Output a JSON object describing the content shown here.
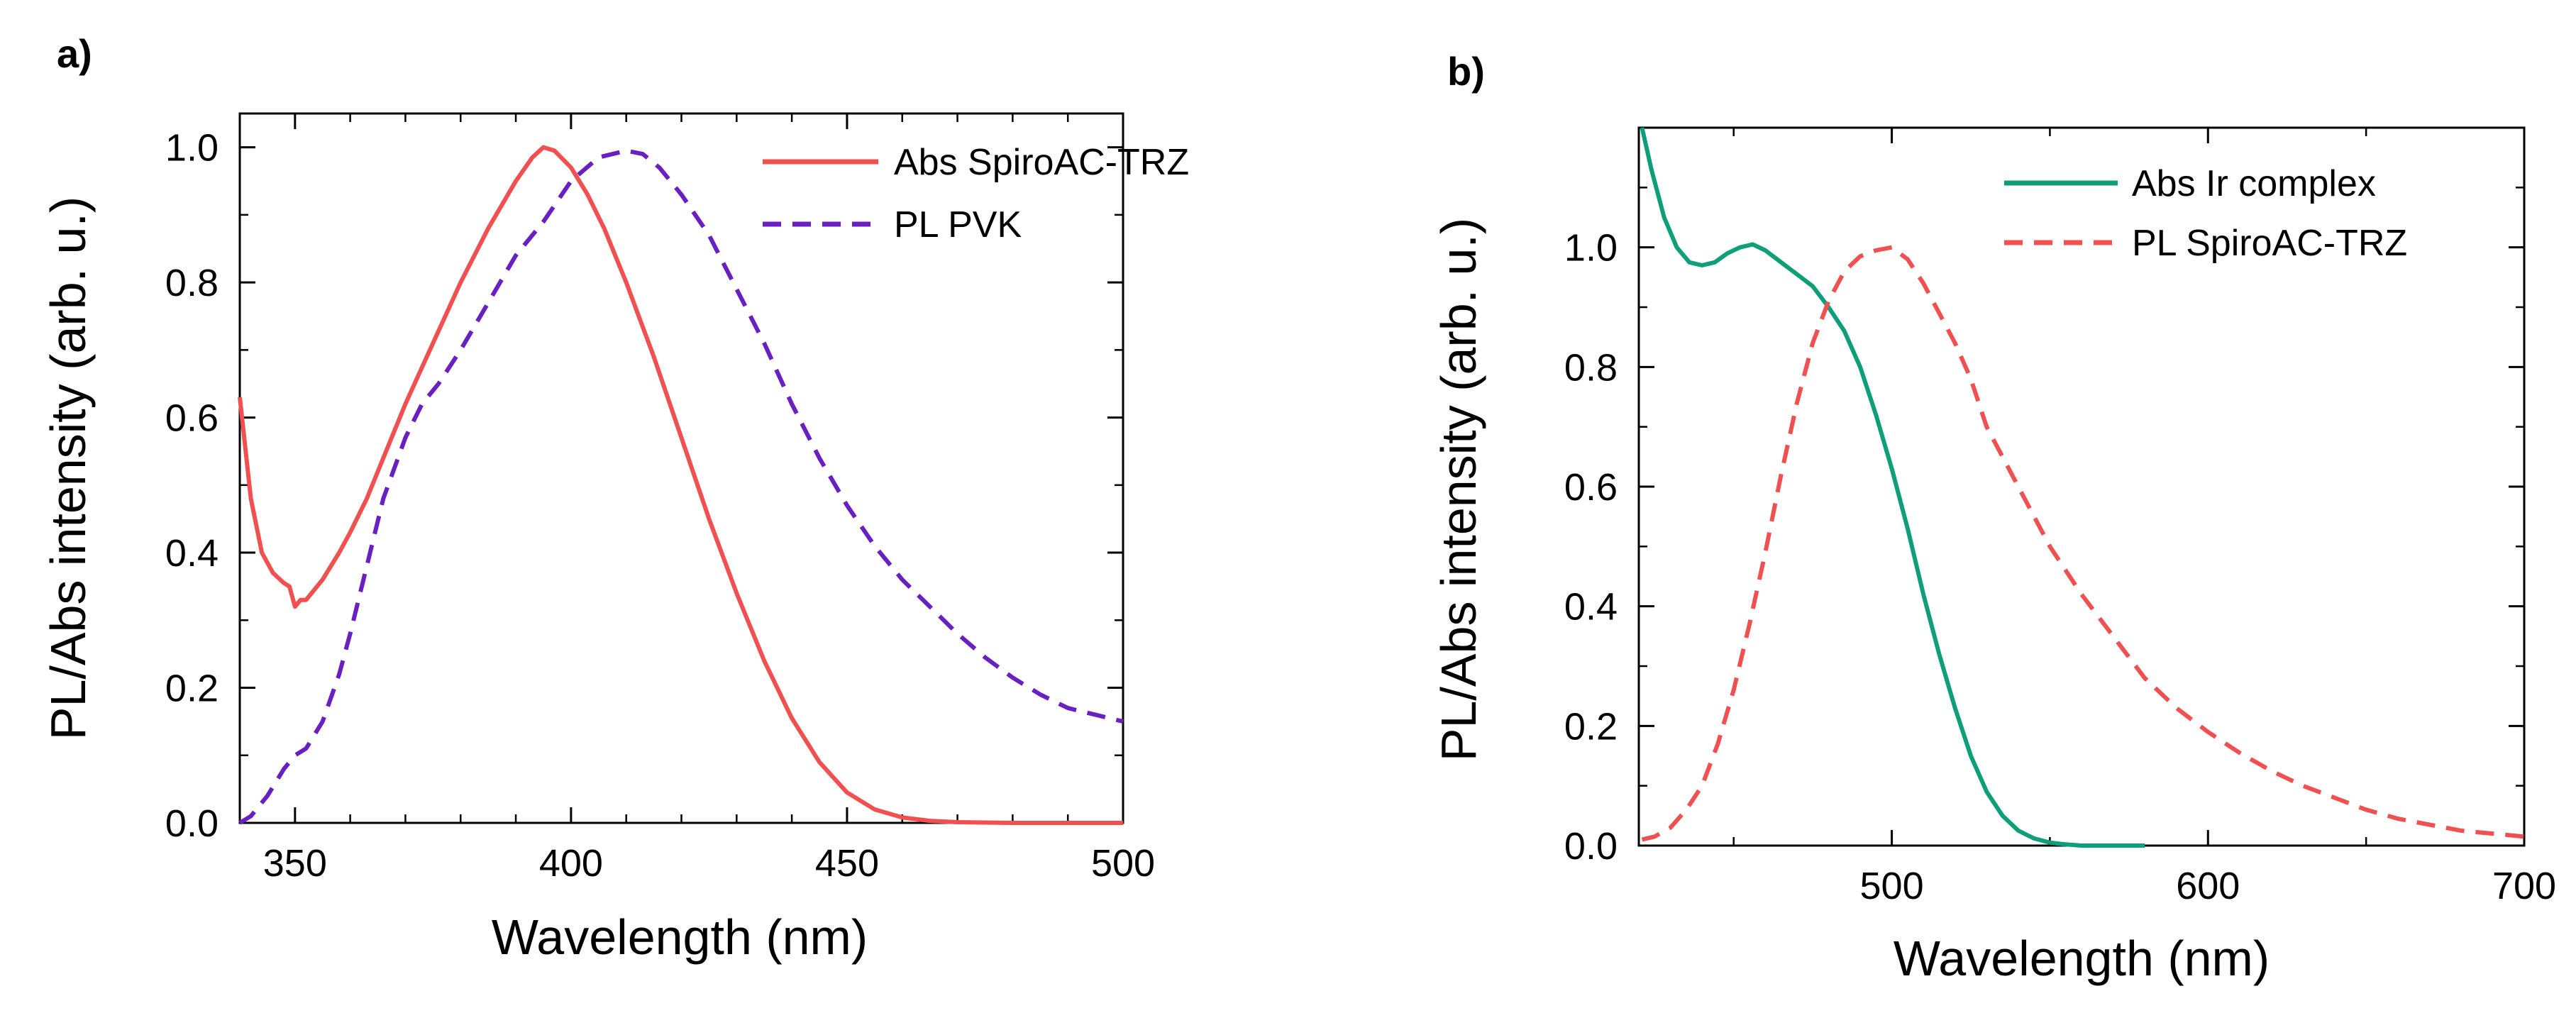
{
  "chart_data": [
    {
      "panel": "a)",
      "type": "line",
      "title": "",
      "xlabel": "Wavelength (nm)",
      "ylabel": "PL/Abs intensity (arb. u.)",
      "xlim": [
        340,
        500
      ],
      "ylim": [
        0,
        1.05
      ],
      "xticks": [
        350,
        400,
        450,
        500
      ],
      "yticks": [
        0.0,
        0.2,
        0.4,
        0.6,
        0.8,
        1.0
      ],
      "xtick_labels": [
        "350",
        "400",
        "450",
        "500"
      ],
      "ytick_labels": [
        "0.0",
        "0.2",
        "0.4",
        "0.6",
        "0.8",
        "1.0"
      ],
      "legend_position": "top-right",
      "series": [
        {
          "name": "Abs SpiroAC-TRZ",
          "color": "#f05050",
          "style": "solid",
          "x": [
            340,
            342,
            344,
            346,
            348,
            349,
            350,
            351,
            352,
            355,
            358,
            360,
            363,
            366,
            370,
            375,
            380,
            385,
            390,
            393,
            395,
            397,
            400,
            403,
            406,
            410,
            415,
            420,
            425,
            430,
            435,
            440,
            445,
            450,
            455,
            460,
            465,
            470,
            480,
            490,
            500
          ],
          "y": [
            0.63,
            0.48,
            0.4,
            0.37,
            0.355,
            0.35,
            0.32,
            0.33,
            0.33,
            0.36,
            0.4,
            0.43,
            0.48,
            0.54,
            0.62,
            0.71,
            0.8,
            0.88,
            0.95,
            0.985,
            1.0,
            0.995,
            0.97,
            0.93,
            0.88,
            0.8,
            0.69,
            0.57,
            0.45,
            0.34,
            0.24,
            0.155,
            0.09,
            0.045,
            0.02,
            0.008,
            0.003,
            0.001,
            0.0,
            0.0,
            0.0
          ]
        },
        {
          "name": "PL PVK",
          "color": "#6a1fc0",
          "style": "dashed",
          "x": [
            340,
            342,
            345,
            348,
            350,
            352,
            355,
            358,
            360,
            363,
            366,
            370,
            373,
            376,
            380,
            385,
            390,
            395,
            400,
            405,
            410,
            413,
            416,
            420,
            425,
            430,
            435,
            440,
            445,
            450,
            455,
            460,
            465,
            470,
            475,
            480,
            485,
            490,
            495,
            500
          ],
          "y": [
            0.0,
            0.01,
            0.04,
            0.08,
            0.1,
            0.11,
            0.15,
            0.22,
            0.28,
            0.38,
            0.48,
            0.57,
            0.62,
            0.65,
            0.7,
            0.77,
            0.84,
            0.89,
            0.95,
            0.985,
            0.995,
            0.99,
            0.97,
            0.93,
            0.87,
            0.79,
            0.71,
            0.62,
            0.54,
            0.47,
            0.41,
            0.36,
            0.32,
            0.28,
            0.245,
            0.215,
            0.19,
            0.17,
            0.16,
            0.15
          ]
        }
      ]
    },
    {
      "panel": "b)",
      "type": "line",
      "title": "",
      "xlabel": "Wavelength (nm)",
      "ylabel": "PL/Abs intensity (arb. u.)",
      "xlim": [
        420,
        700
      ],
      "ylim": [
        0,
        1.2
      ],
      "xticks": [
        500,
        600,
        700
      ],
      "yticks": [
        0.0,
        0.2,
        0.4,
        0.6,
        0.8,
        1.0
      ],
      "xtick_labels": [
        "500",
        "600",
        "700"
      ],
      "ytick_labels": [
        "0.0",
        "0.2",
        "0.4",
        "0.6",
        "0.8",
        "1.0"
      ],
      "legend_position": "top-right",
      "series": [
        {
          "name": "Abs Ir complex",
          "color": "#0f9e7a",
          "style": "solid",
          "x": [
            421,
            424,
            428,
            432,
            436,
            440,
            444,
            448,
            452,
            456,
            460,
            465,
            470,
            475,
            480,
            485,
            490,
            495,
            500,
            505,
            510,
            515,
            520,
            525,
            530,
            535,
            540,
            545,
            550,
            555,
            560,
            565,
            570,
            580
          ],
          "y": [
            1.2,
            1.13,
            1.05,
            1.0,
            0.975,
            0.97,
            0.975,
            0.99,
            1.0,
            1.005,
            0.995,
            0.975,
            0.955,
            0.935,
            0.9,
            0.86,
            0.8,
            0.72,
            0.63,
            0.53,
            0.42,
            0.32,
            0.23,
            0.15,
            0.09,
            0.05,
            0.025,
            0.012,
            0.005,
            0.002,
            0.0,
            0.0,
            0.0,
            0.0
          ]
        },
        {
          "name": "PL SpiroAC-TRZ",
          "color": "#f05050",
          "style": "dashed",
          "x": [
            421,
            425,
            430,
            435,
            440,
            445,
            450,
            455,
            460,
            465,
            470,
            475,
            480,
            485,
            490,
            495,
            500,
            505,
            510,
            515,
            520,
            525,
            530,
            540,
            550,
            560,
            570,
            580,
            590,
            600,
            610,
            620,
            630,
            640,
            650,
            660,
            670,
            680,
            690,
            700
          ],
          "y": [
            0.01,
            0.015,
            0.03,
            0.06,
            0.1,
            0.17,
            0.26,
            0.37,
            0.49,
            0.62,
            0.74,
            0.84,
            0.91,
            0.96,
            0.985,
            0.995,
            1.0,
            0.98,
            0.94,
            0.89,
            0.84,
            0.78,
            0.7,
            0.6,
            0.5,
            0.42,
            0.35,
            0.28,
            0.23,
            0.19,
            0.155,
            0.125,
            0.1,
            0.08,
            0.06,
            0.045,
            0.035,
            0.025,
            0.02,
            0.015
          ]
        }
      ]
    }
  ]
}
